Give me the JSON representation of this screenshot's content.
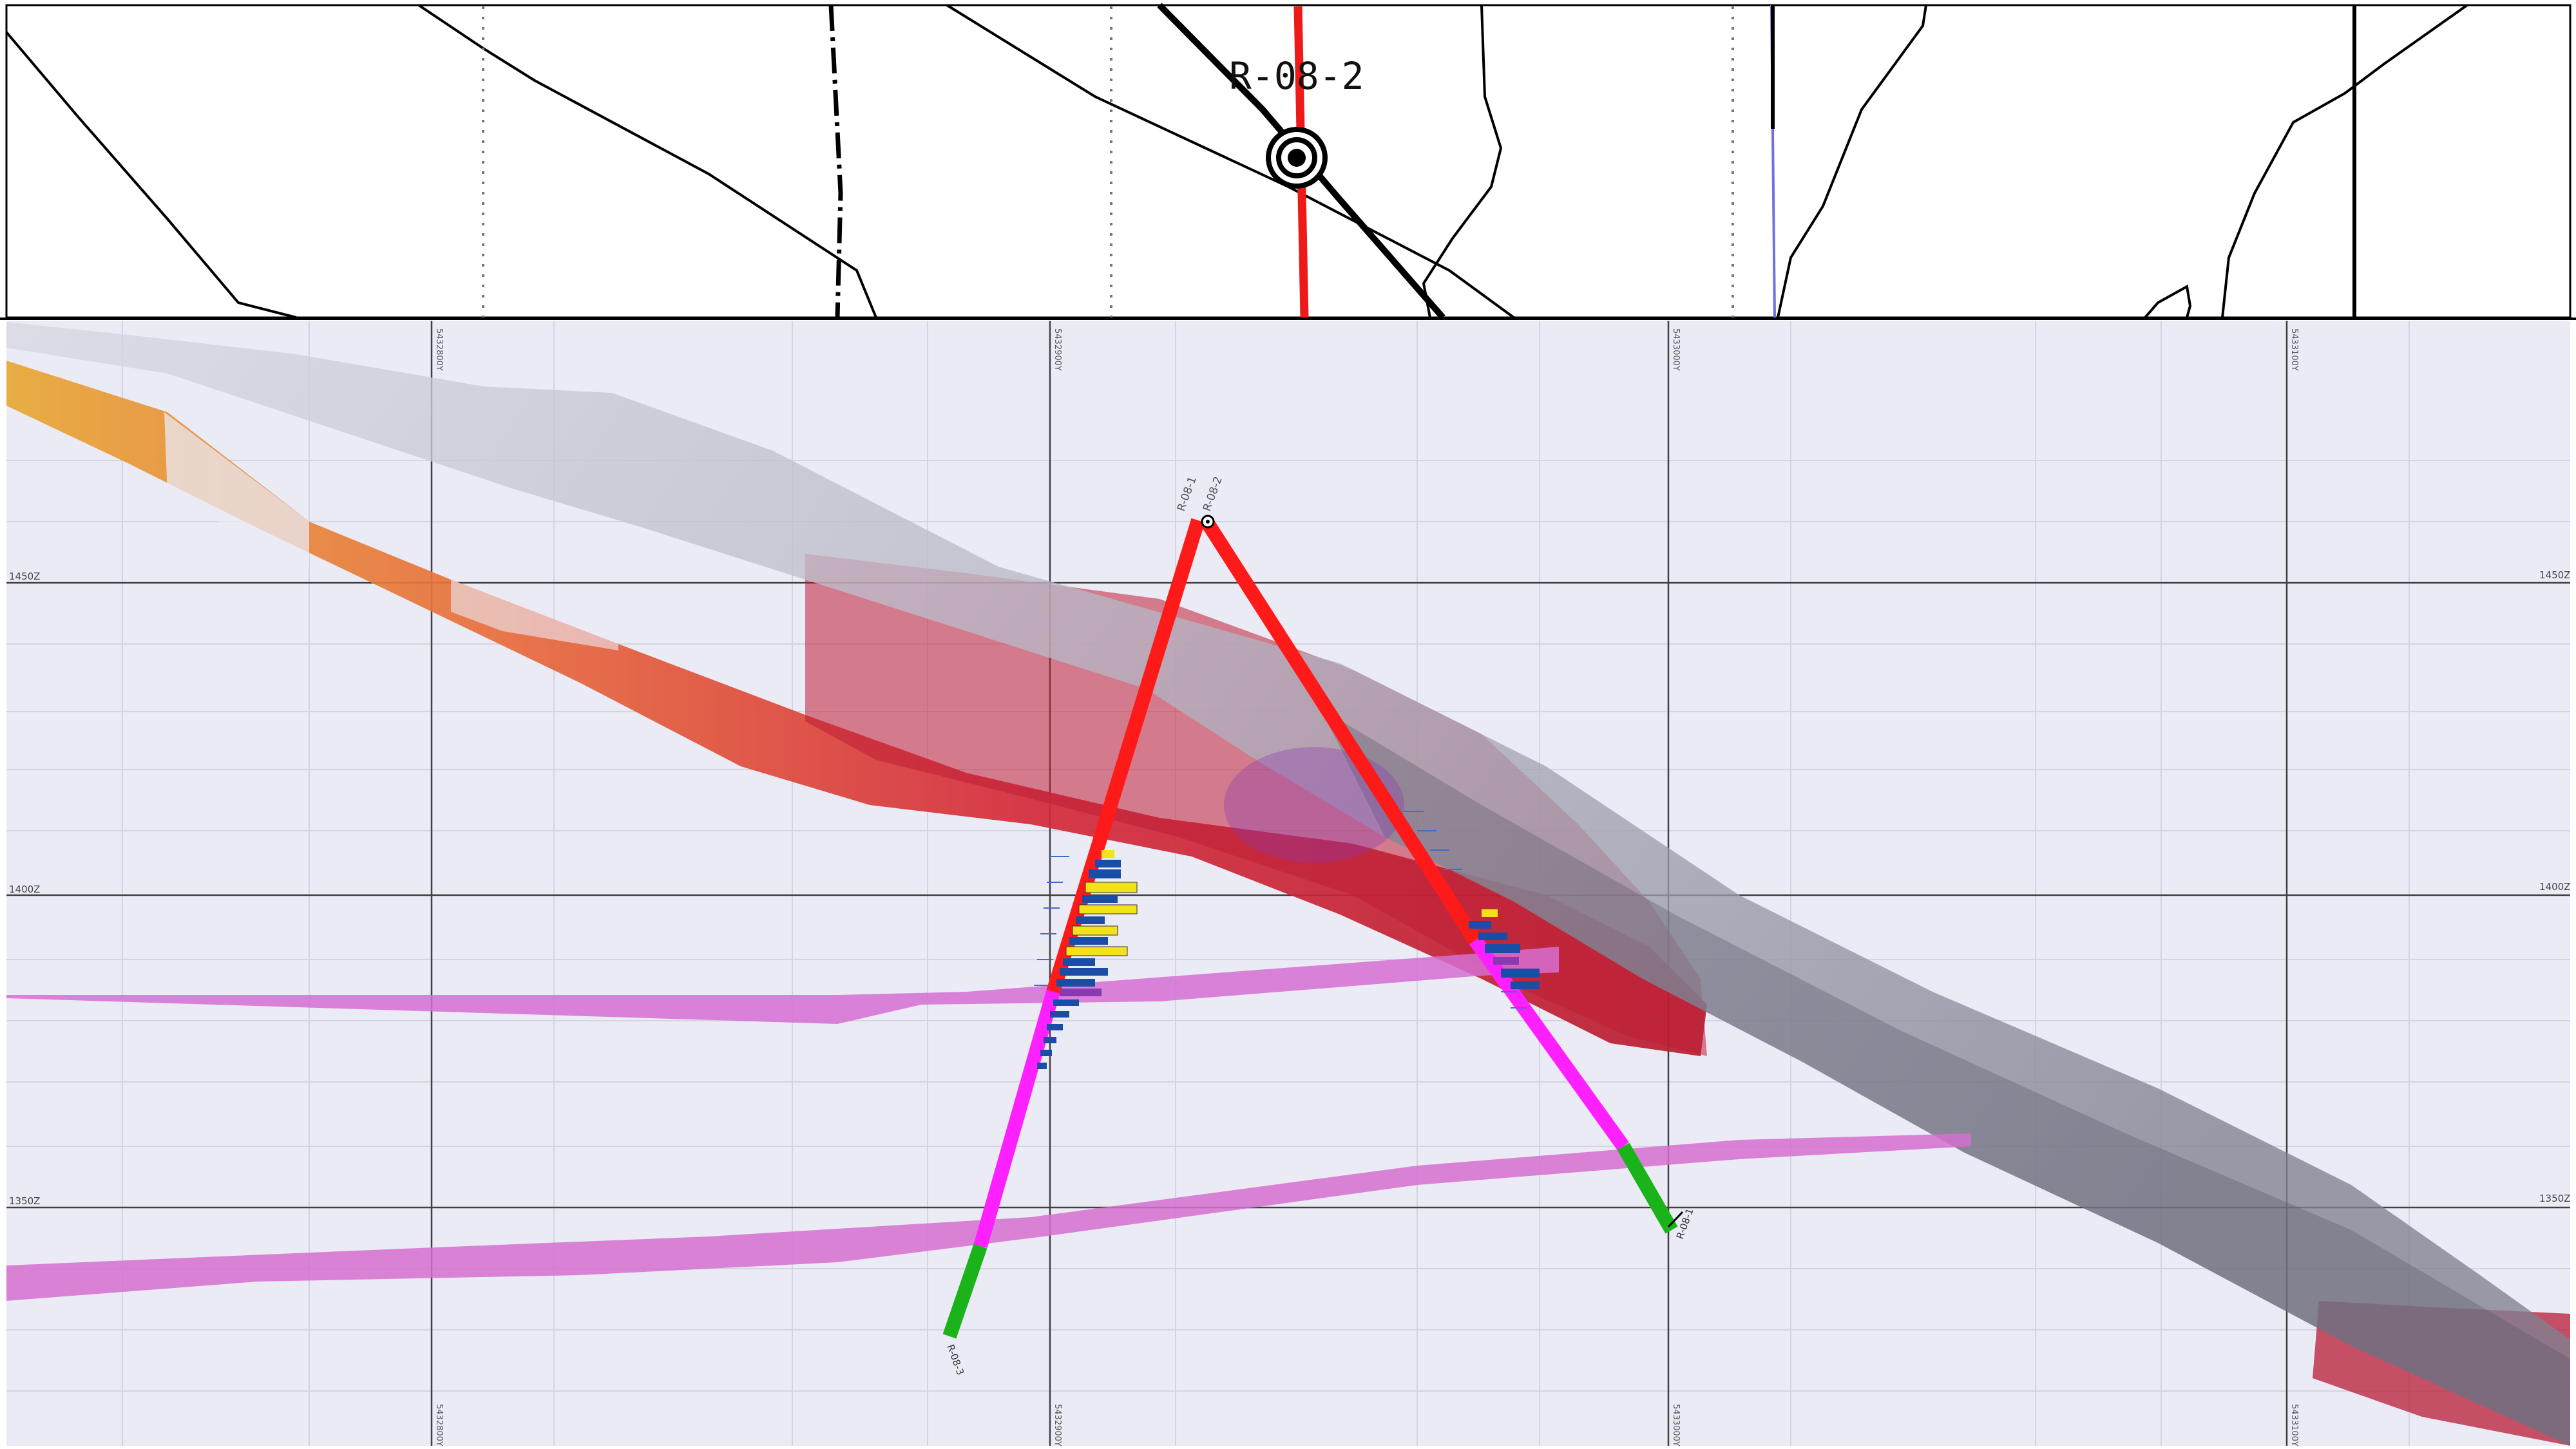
{
  "plan_view": {
    "collar_label": "R-08-2"
  },
  "section_view": {
    "elevation_labels": [
      "1450Z",
      "1400Z",
      "1350Z"
    ],
    "northing_labels": [
      "5432800Y",
      "5432900Y",
      "5433000Y",
      "5433100Y"
    ],
    "drillholes": [
      {
        "collar_label": "R-08-1",
        "end_label": "R-08-3"
      },
      {
        "collar_label": "R-08-2",
        "end_label": "R-08-1"
      }
    ],
    "colors": {
      "background": "#ebebf6",
      "mineralized_zone": "#c81e32",
      "grade_shell": "#e8a030",
      "fault_plane": "#8a8a96",
      "dike": "#d770d0",
      "hole_upper": "#ff1a1a",
      "hole_mid": "#ff1aff",
      "hole_lower": "#19b31a",
      "assay_bar_high": "#f2e21a",
      "assay_bar_low": "#1a4ea6"
    }
  }
}
